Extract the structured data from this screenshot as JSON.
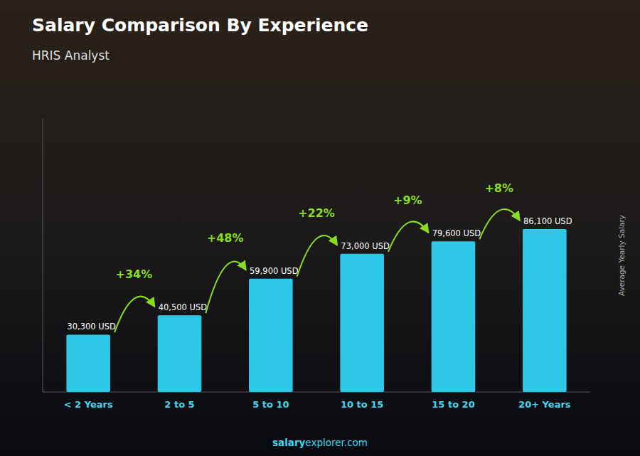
{
  "chart_data": {
    "type": "bar",
    "title": "Salary Comparison By Experience",
    "subtitle": "HRIS Analyst",
    "ylabel": "Average Yearly Salary",
    "categories": [
      "< 2 Years",
      "2 to 5",
      "5 to 10",
      "10 to 15",
      "15 to 20",
      "20+ Years"
    ],
    "values": [
      30300,
      40500,
      59900,
      73000,
      79600,
      86100
    ],
    "value_labels": [
      "30,300 USD",
      "40,500 USD",
      "59,900 USD",
      "73,000 USD",
      "79,600 USD",
      "86,100 USD"
    ],
    "data_labels": true,
    "annotations": [
      "+34%",
      "+48%",
      "+22%",
      "+9%",
      "+8%"
    ],
    "footer": [
      "salary",
      "explorer.com"
    ],
    "color": "#2dc8e8",
    "ylim": [
      0,
      144400
    ],
    "tick_labels": "x",
    "grid": false
  }
}
